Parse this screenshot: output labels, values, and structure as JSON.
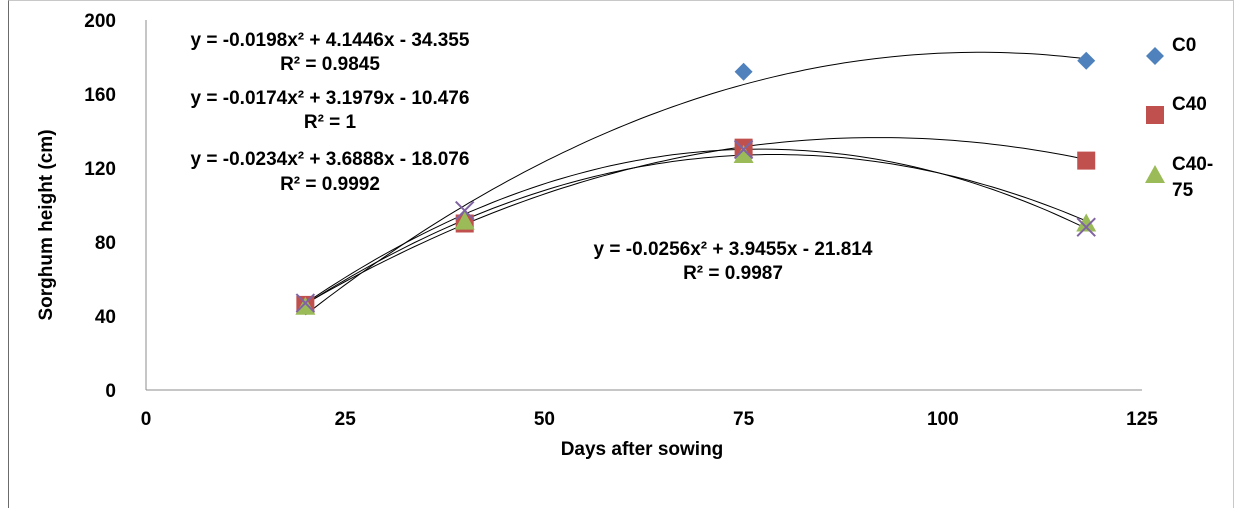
{
  "chart_data": {
    "type": "scatter",
    "title": "",
    "xlabel": "Days after sowing",
    "ylabel": "Sorghum height (cm)",
    "xlim": [
      0,
      125
    ],
    "ylim": [
      0,
      200
    ],
    "xticks": [
      0,
      25,
      50,
      75,
      100,
      125
    ],
    "yticks": [
      0,
      40,
      80,
      120,
      160,
      200
    ],
    "grid": false,
    "legend_position": "right",
    "series": [
      {
        "name": "C0",
        "marker": "diamond",
        "color": "#4f81bd",
        "x": [
          20,
          40,
          75,
          118
        ],
        "y": [
          46,
          92,
          172,
          178
        ]
      },
      {
        "name": "C40",
        "marker": "square",
        "color": "#c0504d",
        "x": [
          20,
          40,
          75,
          118
        ],
        "y": [
          46,
          90,
          131,
          124
        ]
      },
      {
        "name": "C40-75",
        "legend_lines": [
          "C40-",
          "75"
        ],
        "marker": "triangle",
        "color": "#9bbb59",
        "x": [
          20,
          40,
          75,
          118
        ],
        "y": [
          45,
          91,
          127,
          90
        ]
      },
      {
        "name": "",
        "marker": "x",
        "color": "#8064a2",
        "x": [
          20,
          40,
          75,
          118
        ],
        "y": [
          47,
          97,
          130,
          88
        ]
      }
    ],
    "trendlines": [
      {
        "a": -0.0198,
        "b": 4.1446,
        "c": -34.355,
        "x_range": [
          20,
          118
        ],
        "equation": "y = -0.0198x² + 4.1446x - 34.355",
        "r2": "R² = 0.9845"
      },
      {
        "a": -0.0174,
        "b": 3.1979,
        "c": -10.476,
        "x_range": [
          20,
          118
        ],
        "equation": "y = -0.0174x² + 3.1979x - 10.476",
        "r2": "R² = 1"
      },
      {
        "a": -0.0234,
        "b": 3.6888,
        "c": -18.076,
        "x_range": [
          20,
          118
        ],
        "equation": "y = -0.0234x² + 3.6888x - 18.076",
        "r2": "R² = 0.9992"
      },
      {
        "a": -0.0256,
        "b": 3.9455,
        "c": -21.814,
        "x_range": [
          20,
          118
        ],
        "equation": "y = -0.0256x² + 3.9455x - 21.814",
        "r2": "R² = 0.9987"
      }
    ]
  }
}
